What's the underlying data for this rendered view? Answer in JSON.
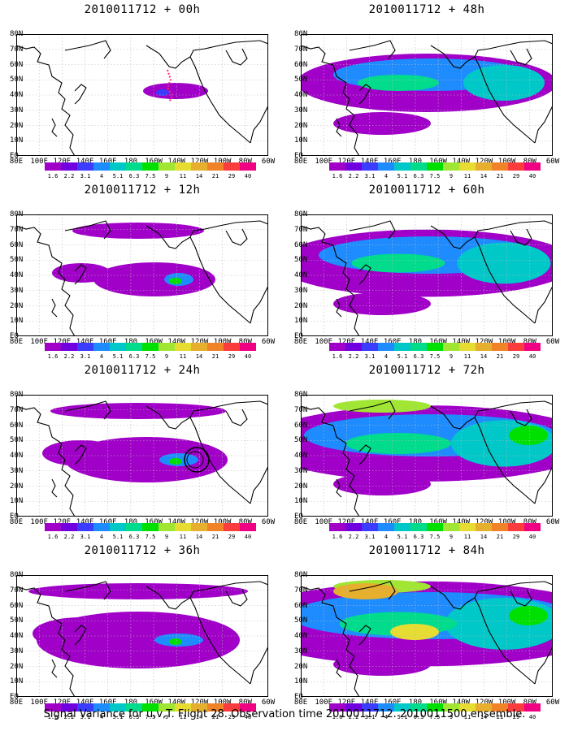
{
  "panels": [
    {
      "title": "2010011712 + 00h",
      "level": 0,
      "track": true
    },
    {
      "title": "2010011712 + 12h",
      "level": 1
    },
    {
      "title": "2010011712 + 24h",
      "level": 2,
      "circle": true
    },
    {
      "title": "2010011712 + 36h",
      "level": 3
    },
    {
      "title": "2010011712 + 48h",
      "level": 4
    },
    {
      "title": "2010011712 + 60h",
      "level": 5
    },
    {
      "title": "2010011712 + 72h",
      "level": 6
    },
    {
      "title": "2010011712 + 84h",
      "level": 7
    }
  ],
  "lat_labels": [
    "80N",
    "70N",
    "60N",
    "50N",
    "40N",
    "30N",
    "20N",
    "10N",
    "EQ"
  ],
  "lon_labels": [
    "80E",
    "100E",
    "120E",
    "140E",
    "160E",
    "180",
    "160W",
    "140W",
    "120W",
    "100W",
    "80W",
    "60W"
  ],
  "colorbar": {
    "labels": [
      "1.6",
      "2.2",
      "3.1",
      "4",
      "5.1",
      "6.3",
      "7.5",
      "9",
      "11",
      "14",
      "21",
      "29",
      "40"
    ],
    "colors": [
      "#a000c8",
      "#7000e0",
      "#3c3cff",
      "#1e8cff",
      "#00c8c8",
      "#00dc8c",
      "#00e000",
      "#a0e632",
      "#e6dc32",
      "#e6af2d",
      "#f08228",
      "#fa3c3c",
      "#f00082"
    ]
  },
  "footer": "Signal Variance for u,v,T. Flight 28. Observation time 2010011712. 2010011500 ensemble."
}
